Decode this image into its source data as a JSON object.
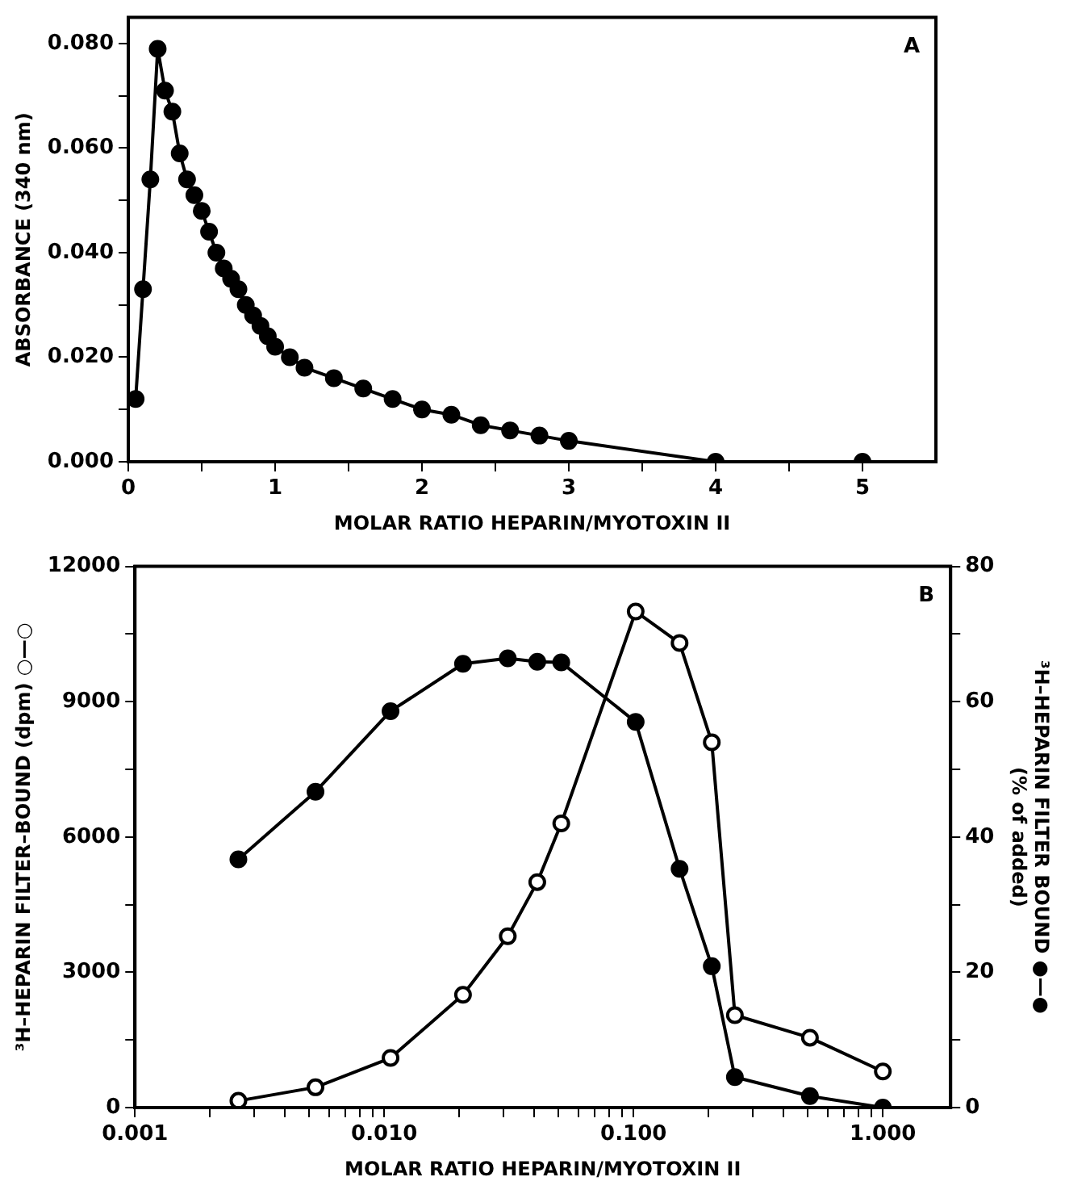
{
  "chart_data": [
    {
      "type": "line",
      "xlabel": "MOLAR RATIO HEPARIN/MYOTOXIN II",
      "ylabel": "ABSORBANCE (340 nm)",
      "annotations": [
        "A"
      ],
      "x": [
        0.05,
        0.1,
        0.15,
        0.2,
        0.25,
        0.3,
        0.35,
        0.4,
        0.45,
        0.5,
        0.55,
        0.6,
        0.65,
        0.7,
        0.75,
        0.8,
        0.85,
        0.9,
        0.95,
        1.0,
        1.1,
        1.2,
        1.4,
        1.6,
        1.8,
        2.0,
        2.2,
        2.4,
        2.6,
        2.8,
        3.0,
        4.0,
        5.0
      ],
      "series": [
        {
          "color": "#000000",
          "values": [
            0.012,
            0.033,
            0.054,
            0.079,
            0.071,
            0.067,
            0.059,
            0.054,
            0.051,
            0.048,
            0.044,
            0.04,
            0.037,
            0.035,
            0.033,
            0.03,
            0.028,
            0.026,
            0.024,
            0.022,
            0.02,
            0.018,
            0.016,
            0.014,
            0.012,
            0.01,
            0.009,
            0.007,
            0.006,
            0.005,
            0.004,
            0.0,
            0.0
          ]
        }
      ],
      "xlim": [
        0,
        5.5
      ],
      "xticks": [
        0,
        {
          "value": 0.5,
          "label": null
        },
        1,
        {
          "value": 1.5,
          "label": null
        },
        2,
        {
          "value": 2.5,
          "label": null
        },
        3,
        {
          "value": 3.5,
          "label": null
        },
        4,
        {
          "value": 4.5,
          "label": null
        },
        5
      ],
      "ylim": [
        0,
        0.085
      ],
      "yticks": [
        {
          "value": 0,
          "label": "0.000"
        },
        {
          "value": 0.01,
          "label": null
        },
        {
          "value": 0.02,
          "label": "0.020"
        },
        {
          "value": 0.03,
          "label": null
        },
        {
          "value": 0.04,
          "label": "0.040"
        },
        {
          "value": 0.05,
          "label": null
        },
        {
          "value": 0.06,
          "label": "0.060"
        },
        {
          "value": 0.07,
          "label": null
        },
        {
          "value": 0.08,
          "label": "0.080"
        }
      ],
      "grid": false,
      "legend": false,
      "marker": "circle",
      "line_style": "solid"
    },
    {
      "type": "line",
      "xlabel": "MOLAR RATIO HEPARIN/MYOTOXIN II",
      "ylabel": "³H–HEPARIN FILTER–BOUND (dpm) ○—○",
      "y2label": "³H–HEPARIN FILTER BOUND ●—●\n(% of added)",
      "annotations": [
        "B"
      ],
      "log": "x",
      "x": [
        0.0026,
        0.0053,
        0.0106,
        0.0207,
        0.0313,
        0.0411,
        0.0513,
        0.102,
        0.153,
        0.206,
        0.255,
        0.51,
        1.0
      ],
      "series": [
        {
          "color": "#000000",
          "values": [
            150,
            450,
            1100,
            2500,
            3800,
            5000,
            6300,
            11000,
            10300,
            8100,
            2050,
            1550,
            800
          ]
        },
        {
          "color": "#000000",
          "axis": "y2",
          "values": [
            36.7,
            46.7,
            58.6,
            65.6,
            66.4,
            65.9,
            65.8,
            57.0,
            35.3,
            20.9,
            4.5,
            1.7,
            0
          ]
        }
      ],
      "xlim": [
        0.001,
        1.87
      ],
      "xticks": [
        {
          "value": 0.001,
          "label": "0.001"
        },
        {
          "value": 0.002,
          "label": null
        },
        {
          "value": 0.003,
          "label": null
        },
        {
          "value": 0.004,
          "label": null
        },
        {
          "value": 0.005,
          "label": null
        },
        {
          "value": 0.006,
          "label": null
        },
        {
          "value": 0.007,
          "label": null
        },
        {
          "value": 0.008,
          "label": null
        },
        {
          "value": 0.009,
          "label": null
        },
        {
          "value": 0.01,
          "label": "0.010"
        },
        {
          "value": 0.02,
          "label": null
        },
        {
          "value": 0.03,
          "label": null
        },
        {
          "value": 0.04,
          "label": null
        },
        {
          "value": 0.05,
          "label": null
        },
        {
          "value": 0.06,
          "label": null
        },
        {
          "value": 0.07,
          "label": null
        },
        {
          "value": 0.08,
          "label": null
        },
        {
          "value": 0.09,
          "label": null
        },
        {
          "value": 0.1,
          "label": "0.100"
        },
        {
          "value": 0.2,
          "label": null
        },
        {
          "value": 0.3,
          "label": null
        },
        {
          "value": 0.4,
          "label": null
        },
        {
          "value": 0.5,
          "label": null
        },
        {
          "value": 0.6,
          "label": null
        },
        {
          "value": 0.7,
          "label": null
        },
        {
          "value": 0.8,
          "label": null
        },
        {
          "value": 0.9,
          "label": null
        },
        {
          "value": 1,
          "label": "1.000"
        }
      ],
      "ylim": [
        0,
        12000
      ],
      "yticks": [
        0,
        {
          "value": 1500,
          "label": null
        },
        3000,
        {
          "value": 4500,
          "label": null
        },
        6000,
        {
          "value": 7500,
          "label": null
        },
        9000,
        {
          "value": 10500,
          "label": null
        },
        12000
      ],
      "y2lim": [
        0,
        80
      ],
      "y2ticks": [
        0,
        {
          "value": 10,
          "label": null
        },
        20,
        {
          "value": 30,
          "label": null
        },
        40,
        {
          "value": 50,
          "label": null
        },
        60,
        {
          "value": 70,
          "label": null
        },
        80
      ],
      "grid": false,
      "legend": false,
      "marker": "circle",
      "line_style": "solid"
    }
  ]
}
